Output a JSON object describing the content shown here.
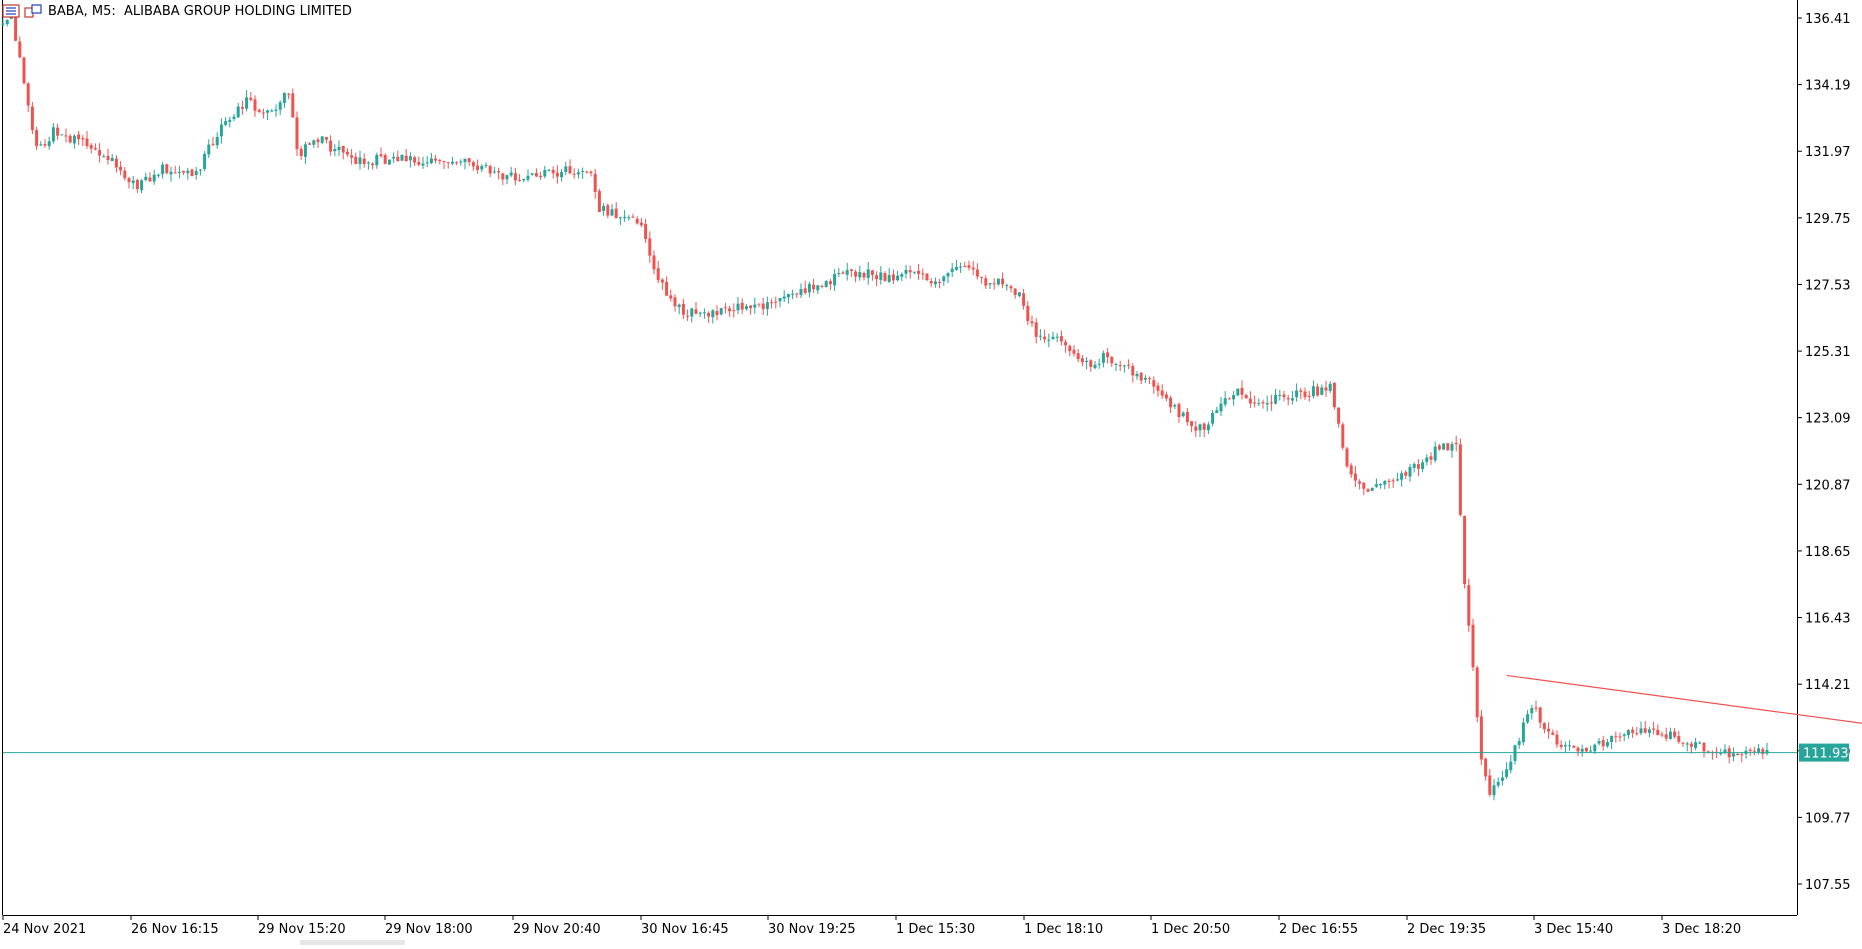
{
  "header": {
    "symbol": "BABA, M5:",
    "name": "ALIBABA GROUP HOLDING LIMITED"
  },
  "chart_data": {
    "type": "candlestick",
    "symbol": "BABA",
    "timeframe": "M5",
    "ylim": [
      105.9,
      136.9
    ],
    "y_ticks": [
      "136.41",
      "134.19",
      "131.97",
      "129.75",
      "127.53",
      "125.31",
      "123.09",
      "120.87",
      "118.65",
      "116.43",
      "114.21",
      "111.99",
      "109.77",
      "107.55"
    ],
    "x_ticks": [
      "24 Nov 2021",
      "26 Nov 16:15",
      "29 Nov 15:20",
      "29 Nov 18:00",
      "29 Nov 20:40",
      "30 Nov 16:45",
      "30 Nov 19:25",
      "1 Dec 15:30",
      "1 Dec 18:10",
      "1 Dec 20:50",
      "2 Dec 16:55",
      "2 Dec 19:35",
      "3 Dec 15:40",
      "3 Dec 18:20"
    ],
    "current_price": "111.93",
    "colors": {
      "up": "#26a69a",
      "down": "#ef5350",
      "price_line": "#26a69a",
      "trendline": "#ef5350",
      "axis": "#000000"
    },
    "trendline": {
      "start": [
        358.0,
        114.5
      ],
      "end": [
        443.0,
        112.9
      ]
    },
    "path": [
      [
        0.0,
        136.3
      ],
      [
        2.0,
        136.5
      ],
      [
        8.0,
        132.0
      ],
      [
        12.0,
        132.6
      ],
      [
        18.0,
        132.3
      ],
      [
        25.0,
        131.8
      ],
      [
        32.0,
        130.8
      ],
      [
        38.0,
        131.4
      ],
      [
        46.0,
        131.2
      ],
      [
        52.0,
        132.9
      ],
      [
        58.0,
        133.6
      ],
      [
        64.0,
        133.2
      ],
      [
        68.0,
        134.0
      ],
      [
        70.0,
        131.9
      ],
      [
        76.0,
        132.3
      ],
      [
        84.0,
        131.6
      ],
      [
        90.0,
        131.7
      ],
      [
        96.0,
        131.8
      ],
      [
        104.0,
        131.5
      ],
      [
        112.0,
        131.6
      ],
      [
        118.0,
        131.1
      ],
      [
        126.0,
        131.1
      ],
      [
        134.0,
        131.3
      ],
      [
        140.0,
        131.2
      ],
      [
        142.0,
        130.1
      ],
      [
        146.0,
        129.8
      ],
      [
        152.0,
        129.5
      ],
      [
        156.0,
        127.6
      ],
      [
        162.0,
        126.6
      ],
      [
        170.0,
        126.6
      ],
      [
        178.0,
        126.8
      ],
      [
        186.0,
        127.0
      ],
      [
        194.0,
        127.5
      ],
      [
        200.0,
        127.9
      ],
      [
        206.0,
        127.9
      ],
      [
        212.0,
        127.7
      ],
      [
        216.0,
        128.0
      ],
      [
        222.0,
        127.6
      ],
      [
        226.0,
        128.0
      ],
      [
        230.0,
        128.1
      ],
      [
        234.0,
        127.6
      ],
      [
        238.0,
        127.6
      ],
      [
        242.0,
        127.2
      ],
      [
        246.0,
        125.7
      ],
      [
        252.0,
        125.6
      ],
      [
        258.0,
        124.9
      ],
      [
        262.0,
        125.1
      ],
      [
        268.0,
        124.7
      ],
      [
        272.0,
        124.4
      ],
      [
        276.0,
        124.0
      ],
      [
        280.0,
        123.2
      ],
      [
        286.0,
        122.6
      ],
      [
        290.0,
        123.6
      ],
      [
        294.0,
        123.9
      ],
      [
        298.0,
        123.5
      ],
      [
        304.0,
        123.8
      ],
      [
        310.0,
        123.9
      ],
      [
        316.0,
        124.1
      ],
      [
        320.0,
        121.6
      ],
      [
        324.0,
        120.6
      ],
      [
        328.0,
        120.9
      ],
      [
        334.0,
        121.3
      ],
      [
        338.0,
        121.6
      ],
      [
        342.0,
        122.1
      ],
      [
        346.0,
        122.2
      ],
      [
        348.0,
        117.6
      ],
      [
        352.0,
        111.7
      ],
      [
        354.0,
        110.6
      ],
      [
        358.0,
        111.2
      ],
      [
        362.0,
        112.9
      ],
      [
        364.0,
        113.5
      ],
      [
        368.0,
        112.5
      ],
      [
        374.0,
        112.0
      ],
      [
        380.0,
        112.2
      ],
      [
        386.0,
        112.6
      ],
      [
        392.0,
        112.8
      ],
      [
        398.0,
        112.4
      ],
      [
        404.0,
        112.1
      ],
      [
        410.0,
        111.9
      ],
      [
        416.0,
        112.0
      ],
      [
        420.0,
        111.9
      ]
    ]
  }
}
